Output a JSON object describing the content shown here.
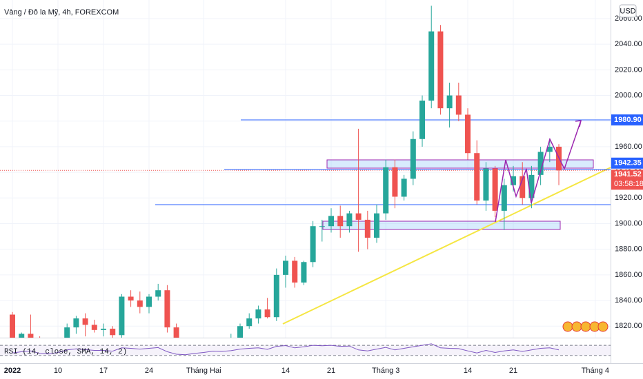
{
  "chart_data": {
    "type": "candlestick",
    "title": "Vàng / Đô la Mỹ, 4h, FOREXCOM",
    "currency": "USD",
    "up_color": "#26a69a",
    "down_color": "#ef5350",
    "x": [
      0,
      1,
      2,
      3,
      4,
      5,
      6,
      7,
      8,
      9,
      10,
      11,
      12,
      13,
      14,
      15,
      16,
      17,
      18,
      19,
      20,
      21,
      22,
      23,
      24,
      25,
      26,
      27,
      28,
      29,
      30,
      31,
      32,
      33,
      34,
      35,
      36,
      37,
      38,
      39,
      40,
      41,
      42,
      43,
      44,
      45,
      46,
      47,
      48,
      49,
      50,
      51,
      52,
      53,
      54,
      55,
      56,
      57,
      58,
      59,
      60
    ],
    "open": [
      1829,
      1801,
      1814,
      1810,
      1791,
      1797,
      1802,
      1819,
      1826,
      1821,
      1817,
      1818,
      1813,
      1843,
      1840,
      1835,
      1843,
      1848,
      1819,
      1796,
      1791,
      1797,
      1801,
      1807,
      1805,
      1808,
      1820,
      1826,
      1833,
      1827,
      1860,
      1871,
      1854,
      1870,
      1898,
      1898,
      1906,
      1898,
      1908,
      1903,
      1889,
      1908,
      1944,
      1921,
      1935,
      1966,
      1996,
      2050,
      1990,
      2000,
      1985,
      1955,
      1918,
      1943,
      1910,
      1930,
      1937,
      1920,
      1938,
      1956,
      1960
    ],
    "high": [
      1831,
      1815,
      1829,
      1812,
      1800,
      1805,
      1822,
      1828,
      1830,
      1825,
      1822,
      1820,
      1845,
      1848,
      1847,
      1845,
      1853,
      1852,
      1822,
      1800,
      1799,
      1805,
      1810,
      1810,
      1814,
      1822,
      1830,
      1836,
      1842,
      1865,
      1875,
      1874,
      1871,
      1902,
      1903,
      1912,
      1914,
      1910,
      1974,
      1910,
      1915,
      1950,
      1950,
      1938,
      1972,
      2000,
      2070,
      2055,
      2010,
      2010,
      1990,
      1965,
      1948,
      1945,
      1935,
      1945,
      1948,
      1945,
      1960,
      1966,
      1962
    ],
    "low": [
      1800,
      1798,
      1808,
      1789,
      1782,
      1790,
      1800,
      1814,
      1812,
      1815,
      1812,
      1805,
      1811,
      1835,
      1830,
      1830,
      1840,
      1815,
      1791,
      1780,
      1785,
      1795,
      1795,
      1788,
      1803,
      1806,
      1818,
      1822,
      1826,
      1824,
      1850,
      1850,
      1852,
      1866,
      1886,
      1893,
      1889,
      1893,
      1878,
      1880,
      1885,
      1903,
      1912,
      1918,
      1930,
      1960,
      1990,
      1985,
      1975,
      1980,
      1950,
      1915,
      1910,
      1905,
      1895,
      1925,
      1915,
      1912,
      1930,
      1948,
      1930
    ],
    "close": [
      1801,
      1814,
      1810,
      1791,
      1797,
      1802,
      1819,
      1826,
      1821,
      1817,
      1818,
      1813,
      1843,
      1840,
      1835,
      1843,
      1848,
      1819,
      1796,
      1791,
      1797,
      1801,
      1807,
      1805,
      1808,
      1820,
      1826,
      1833,
      1827,
      1860,
      1871,
      1854,
      1870,
      1898,
      1898,
      1906,
      1898,
      1908,
      1903,
      1889,
      1908,
      1944,
      1921,
      1935,
      1966,
      1996,
      2050,
      1990,
      2000,
      1985,
      1955,
      1918,
      1943,
      1910,
      1930,
      1937,
      1920,
      1938,
      1956,
      1960,
      1941.52
    ],
    "xlim": [
      -1.364,
      65.68
    ],
    "xticks": [
      {
        "value": 0,
        "label": "2022"
      },
      {
        "value": 5,
        "label": "10"
      },
      {
        "value": 10,
        "label": "17"
      },
      {
        "value": 15,
        "label": "24"
      },
      {
        "value": 21,
        "label": "Tháng Hai"
      },
      {
        "value": 30,
        "label": "14"
      },
      {
        "value": 35,
        "label": "21"
      },
      {
        "value": 41,
        "label": "Tháng 3"
      },
      {
        "value": 50,
        "label": "14"
      },
      {
        "value": 55,
        "label": "21"
      },
      {
        "value": 64,
        "label": "Tháng 4"
      }
    ],
    "ylim": [
      1811,
      2074.5
    ],
    "yticks": [
      {
        "value": 1820,
        "label": "1820.00"
      },
      {
        "value": 1840,
        "label": "1840.00"
      },
      {
        "value": 1860,
        "label": "1860.00"
      },
      {
        "value": 1880,
        "label": "1880.00"
      },
      {
        "value": 1900,
        "label": "1900.00"
      },
      {
        "value": 1920,
        "label": "1920.00"
      },
      {
        "value": 1940,
        "label": "1940.00"
      },
      {
        "value": 1960,
        "label": "1960.00"
      },
      {
        "value": 1980,
        "label": "1980.00"
      },
      {
        "value": 2000,
        "label": "2000.00"
      },
      {
        "value": 2020,
        "label": "2020.00"
      },
      {
        "value": 2040,
        "label": "2040.00"
      },
      {
        "value": 2060,
        "label": "2060.00"
      }
    ],
    "grid": true,
    "price_lines": [
      {
        "value": 1980.9,
        "label": "1980.90",
        "color": "#2962ff"
      },
      {
        "value": 1942.35,
        "label": "1942.35",
        "color": "#2962ff"
      }
    ],
    "last_price": {
      "value": 1941.52,
      "label": "1941.52",
      "color": "#ef5350"
    },
    "countdown": "03:58:18",
    "rsi": {
      "label": "RSI (14, close, SMA, 14, 2)",
      "color": "#7e57c2",
      "ylim": [
        0,
        100
      ],
      "bands": [
        30,
        70
      ],
      "values": [
        40,
        45,
        48,
        38,
        36,
        42,
        52,
        56,
        53,
        50,
        50,
        47,
        60,
        58,
        55,
        58,
        61,
        45,
        35,
        33,
        38,
        42,
        47,
        46,
        49,
        55,
        58,
        60,
        54,
        66,
        69,
        60,
        64,
        70,
        68,
        70,
        66,
        67,
        52,
        48,
        55,
        62,
        52,
        58,
        64,
        70,
        76,
        60,
        58,
        57,
        48,
        40,
        50,
        42,
        48,
        52,
        46,
        52,
        58,
        60,
        52
      ]
    }
  }
}
